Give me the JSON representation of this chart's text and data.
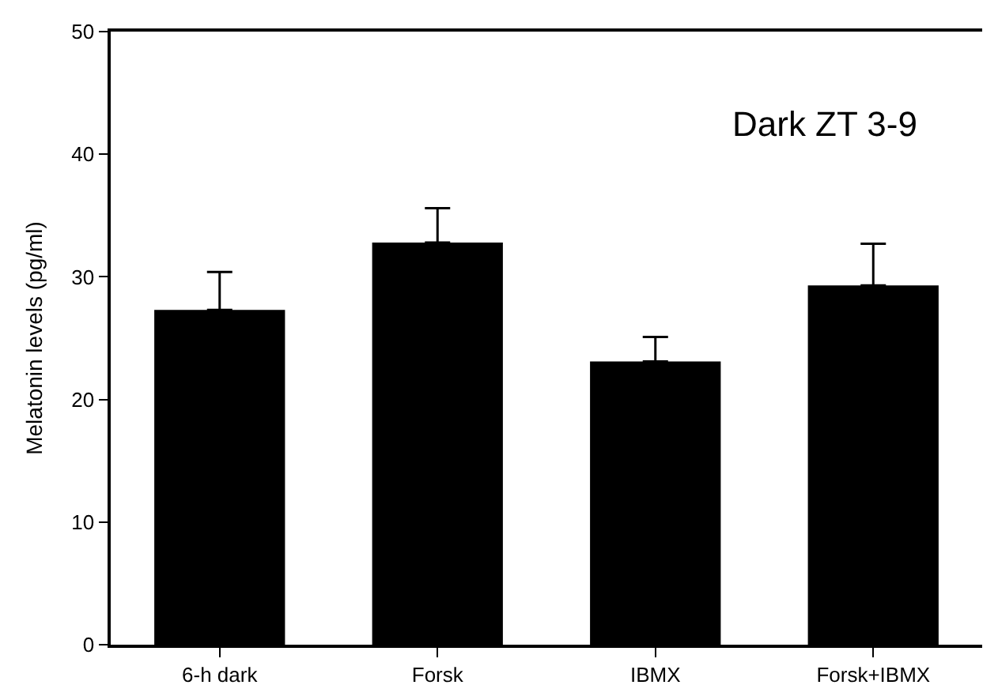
{
  "chart_data": {
    "type": "bar",
    "categories": [
      "6-h dark",
      "Forsk",
      "IBMX",
      "Forsk+IBMX"
    ],
    "values": [
      27.3,
      32.8,
      23.1,
      29.3
    ],
    "errors": [
      [
        27.3,
        30.4
      ],
      [
        32.8,
        35.6
      ],
      [
        23.1,
        25.1
      ],
      [
        29.3,
        32.7
      ]
    ],
    "colors": [
      "#000000",
      "#000000",
      "#000000",
      "#000000"
    ],
    "ylabel": "Melatonin levels (pg/ml)",
    "annotations": [
      "Dark ZT 3-9"
    ],
    "ylim": [
      0,
      50
    ],
    "yticks": [
      0,
      10,
      20,
      30,
      40,
      50
    ]
  }
}
